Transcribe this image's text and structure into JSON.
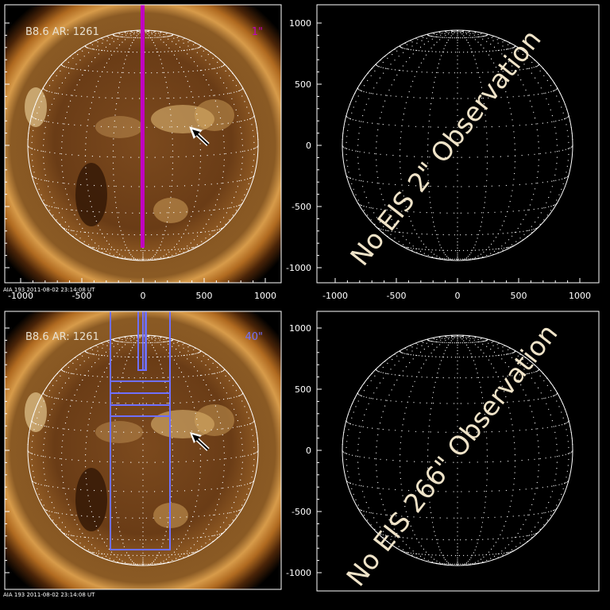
{
  "panels": {
    "top_left": {
      "info": "B8.6  AR: 1261",
      "res": "1\"",
      "res_color": "#c000c0",
      "footer": "AIA 193   2011-08-02 23:14:08 UT"
    },
    "top_right": {
      "overlay": "No EIS 2\" Observation"
    },
    "bottom_left": {
      "info": "B8.6  AR: 1261",
      "res": "40\"",
      "res_color": "#6f6fff",
      "footer": "AIA 193   2011-08-02 23:14:08 UT"
    },
    "bottom_right": {
      "overlay": "No EIS 266\" Observation"
    }
  },
  "axes": {
    "x_ticks": [
      "-1000",
      "-500",
      "0",
      "500",
      "1000"
    ],
    "y_ticks": [
      "1000",
      "500",
      "0",
      "-500",
      "-1000"
    ]
  },
  "colors": {
    "background": "#000000",
    "limb": "#ffffff",
    "slit": "#c000c0",
    "raster_box": "#6f6fff",
    "overlay_text": "#efe3c8"
  },
  "icons": {
    "active_region_marker": "arrow-icon"
  }
}
